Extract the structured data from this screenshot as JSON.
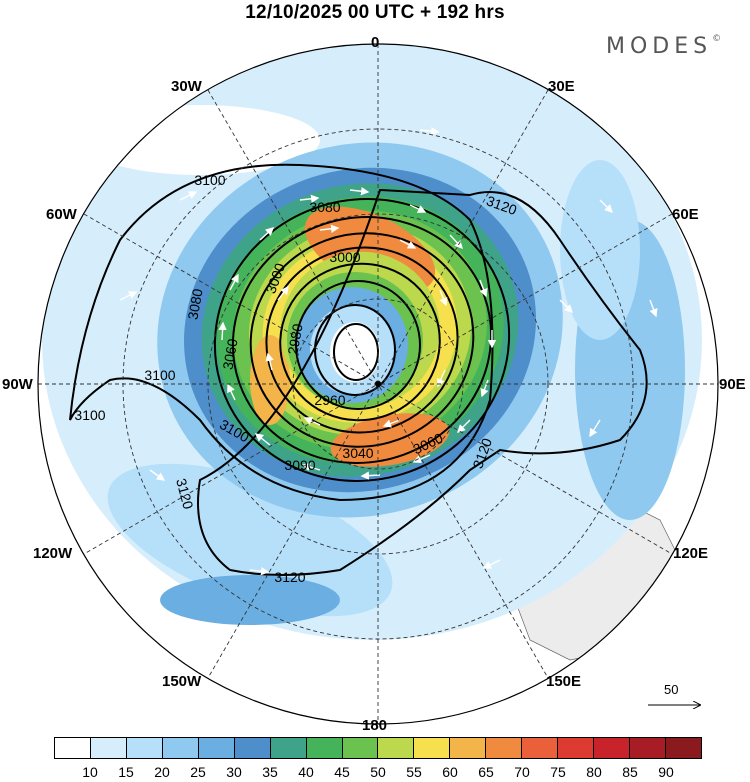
{
  "title": "12/10/2025  00 UTC  + 192 hrs",
  "brand": {
    "name": "MODES",
    "mark": "©"
  },
  "longitudes": {
    "n": "0",
    "s": "180",
    "w30": "30W",
    "e30": "30E",
    "w60": "60W",
    "e60": "60E",
    "w90": "90W",
    "e90": "90E",
    "w120": "120W",
    "e120": "120E",
    "w150": "150W",
    "e150": "150E"
  },
  "contours": {
    "c1": "3100",
    "c2": "3100",
    "c3": "3100",
    "c4": "3080",
    "c5": "3060",
    "c6": "3000",
    "c7": "3080",
    "c8": "3000",
    "c9": "2980",
    "c10": "2960",
    "c11": "3040",
    "c12": "3060",
    "c13": "3090",
    "c14": "3100",
    "c15": "3120",
    "c16": "3120",
    "c17": "3120",
    "c18": "3120"
  },
  "wind_reference": "50",
  "colorbar": {
    "colors": [
      "#ffffff",
      "#d6eefc",
      "#b6e0fa",
      "#90c9ef",
      "#6aaee2",
      "#4e8ecb",
      "#3fa38a",
      "#45b35a",
      "#6cc24e",
      "#bcd94d",
      "#f6e04e",
      "#f3b44a",
      "#f08a3e",
      "#e9603a",
      "#dd3b32",
      "#c8232b",
      "#a81c26",
      "#8a1a1e"
    ],
    "ticks": [
      "10",
      "15",
      "20",
      "25",
      "30",
      "35",
      "40",
      "45",
      "50",
      "55",
      "60",
      "65",
      "70",
      "75",
      "80",
      "85",
      "90"
    ]
  }
}
